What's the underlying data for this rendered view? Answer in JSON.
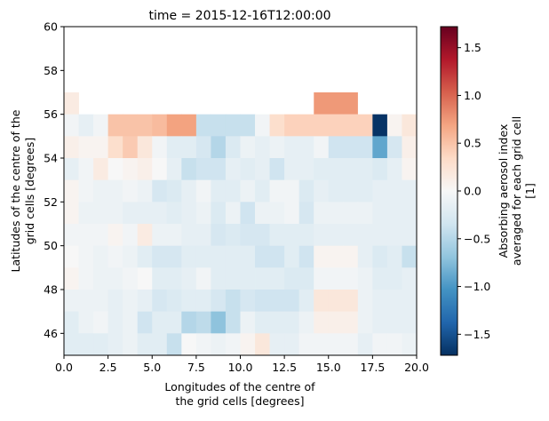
{
  "chart_data": {
    "type": "heatmap",
    "title": "time = 2015-12-16T12:00:00",
    "xlabel_lines": [
      "Longitudes of the centre of",
      "the grid cells [degrees]"
    ],
    "ylabel_lines": [
      "Latitudes of the centre of the",
      "grid cells [degrees]"
    ],
    "colorbar_label_lines": [
      "Absorbing aerosol index",
      "averaged for each grid cell",
      "[1]"
    ],
    "xlim": [
      0,
      20
    ],
    "ylim": [
      45,
      60
    ],
    "x_ticks": [
      "0.0",
      "2.5",
      "5.0",
      "7.5",
      "10.0",
      "12.5",
      "15.0",
      "17.5",
      "20.0"
    ],
    "y_ticks": [
      "46",
      "48",
      "50",
      "52",
      "54",
      "56",
      "58",
      "60"
    ],
    "colorbar_range": [
      -1.72,
      1.72
    ],
    "colorbar_ticks": [
      "−1.5",
      "−1.0",
      "−0.5",
      "0.0",
      "0.5",
      "1.0",
      "1.5"
    ],
    "colormap": "RdBu_r",
    "cell_width_deg": 0.8333,
    "cell_height_deg": 1.0,
    "rows_lat_centers": [
      56.5,
      55.5,
      54.5,
      53.5,
      52.5,
      51.5,
      50.5,
      49.5,
      48.5,
      47.5,
      46.5,
      45.5
    ],
    "values": [
      [
        0.15,
        null,
        null,
        null,
        null,
        null,
        null,
        null,
        null,
        null,
        null,
        null,
        null,
        null,
        null,
        null,
        null,
        null,
        null,
        null,
        null,
        null,
        null,
        null
      ],
      [
        -0.05,
        -0.15,
        -0.05,
        0.5,
        0.5,
        0.5,
        0.55,
        0.7,
        0.7,
        -0.4,
        -0.4,
        -0.4,
        -0.4,
        -0.05,
        0.3,
        0.4,
        0.4,
        0.4,
        0.4,
        0.4,
        0.4,
        -1.7,
        0.05,
        0.2
      ],
      [
        0.1,
        0.05,
        0.05,
        0.3,
        0.45,
        0.2,
        -0.05,
        -0.2,
        -0.2,
        -0.3,
        -0.5,
        -0.25,
        -0.1,
        -0.15,
        -0.1,
        -0.15,
        -0.15,
        -0.05,
        -0.35,
        -0.35,
        -0.35,
        -0.9,
        -0.3,
        0.1
      ],
      [
        -0.15,
        -0.05,
        0.15,
        0.0,
        0.05,
        0.1,
        0.0,
        -0.15,
        -0.4,
        -0.35,
        -0.35,
        -0.15,
        -0.2,
        -0.15,
        -0.35,
        -0.15,
        -0.15,
        -0.2,
        -0.2,
        -0.2,
        -0.2,
        -0.25,
        -0.15,
        0.05
      ],
      [
        0.05,
        -0.05,
        -0.1,
        -0.1,
        -0.05,
        -0.1,
        -0.3,
        -0.25,
        -0.15,
        -0.05,
        -0.2,
        -0.2,
        -0.1,
        -0.2,
        -0.05,
        -0.05,
        -0.25,
        -0.15,
        -0.2,
        -0.2,
        -0.2,
        -0.15,
        -0.15,
        -0.15
      ],
      [
        0.05,
        -0.1,
        -0.1,
        -0.1,
        -0.15,
        -0.15,
        -0.15,
        -0.2,
        -0.15,
        -0.1,
        -0.25,
        -0.1,
        -0.35,
        -0.1,
        -0.1,
        -0.05,
        -0.3,
        -0.1,
        -0.1,
        -0.1,
        -0.1,
        -0.15,
        -0.15,
        -0.15
      ],
      [
        -0.05,
        -0.05,
        -0.05,
        0.05,
        -0.05,
        0.15,
        -0.1,
        -0.1,
        -0.15,
        -0.15,
        -0.3,
        -0.25,
        -0.3,
        -0.3,
        -0.2,
        -0.2,
        -0.2,
        -0.15,
        -0.15,
        -0.15,
        -0.15,
        -0.15,
        -0.15,
        -0.15
      ],
      [
        0.0,
        -0.05,
        -0.1,
        -0.05,
        -0.1,
        -0.2,
        -0.3,
        -0.3,
        -0.2,
        -0.2,
        -0.2,
        -0.2,
        -0.2,
        -0.35,
        -0.35,
        -0.2,
        -0.35,
        0.05,
        0.05,
        0.05,
        -0.15,
        -0.25,
        -0.2,
        -0.4
      ],
      [
        0.05,
        -0.05,
        -0.1,
        -0.1,
        -0.05,
        0.0,
        -0.2,
        -0.2,
        -0.15,
        -0.05,
        -0.2,
        -0.2,
        -0.2,
        -0.2,
        -0.2,
        -0.25,
        -0.25,
        -0.05,
        -0.05,
        -0.05,
        -0.1,
        -0.2,
        -0.2,
        -0.15
      ],
      [
        -0.1,
        -0.1,
        -0.1,
        -0.15,
        -0.1,
        -0.15,
        -0.3,
        -0.25,
        -0.2,
        -0.2,
        -0.3,
        -0.4,
        -0.3,
        -0.35,
        -0.35,
        -0.35,
        -0.2,
        0.2,
        0.2,
        0.2,
        -0.1,
        -0.15,
        -0.15,
        -0.15
      ],
      [
        -0.2,
        -0.1,
        -0.05,
        -0.15,
        -0.1,
        -0.35,
        -0.2,
        -0.2,
        -0.5,
        -0.45,
        -0.7,
        -0.4,
        -0.1,
        -0.2,
        -0.2,
        -0.2,
        -0.1,
        0.1,
        0.1,
        0.1,
        -0.1,
        -0.15,
        -0.15,
        -0.15
      ],
      [
        -0.2,
        -0.2,
        -0.2,
        -0.15,
        -0.1,
        -0.2,
        -0.2,
        -0.4,
        0.0,
        -0.05,
        -0.1,
        -0.05,
        0.05,
        0.2,
        -0.15,
        -0.15,
        -0.05,
        -0.05,
        -0.05,
        -0.05,
        -0.15,
        -0.05,
        -0.05,
        -0.1
      ]
    ],
    "highlight_block": {
      "lon": [
        14.17,
        16.67
      ],
      "lat": [
        56,
        57
      ],
      "value": 0.75
    }
  }
}
